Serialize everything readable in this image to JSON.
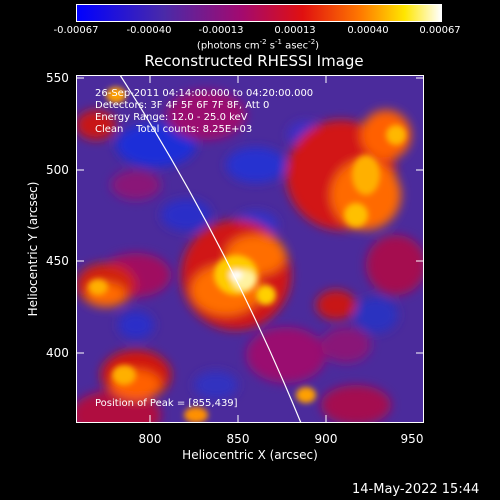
{
  "colorbar": {
    "ticks": [
      "-0.00067",
      "-0.00040",
      "-0.00013",
      "0.00013",
      "0.00040",
      "0.00067"
    ],
    "units_text": "(photons cm",
    "units_sup1": "-2",
    "units_mid": " s",
    "units_sup2": "-1",
    "units_end": " asec",
    "units_sup3": "-2",
    "units_close": ")"
  },
  "title": "Reconstructed RHESSI Image",
  "info": {
    "line1": "26-Sep-2011 04:14:00.000 to 04:20:00.000",
    "line2": "Detectors: 3F 4F 5F 6F 7F 8F, Att 0",
    "line3": "Energy Range: 12.0 - 25.0 keV",
    "line4": "Clean    Total counts: 8.25E+03",
    "peak": "Position of Peak = [855,439]"
  },
  "axes": {
    "xlabel": "Heliocentric X (arcsec)",
    "ylabel": "Heliocentric Y (arcsec)",
    "xticks": [
      "800",
      "850",
      "900",
      "950"
    ],
    "yticks": [
      "550",
      "500",
      "450",
      "400"
    ]
  },
  "timestamp": "14-May-2022 15:44"
}
